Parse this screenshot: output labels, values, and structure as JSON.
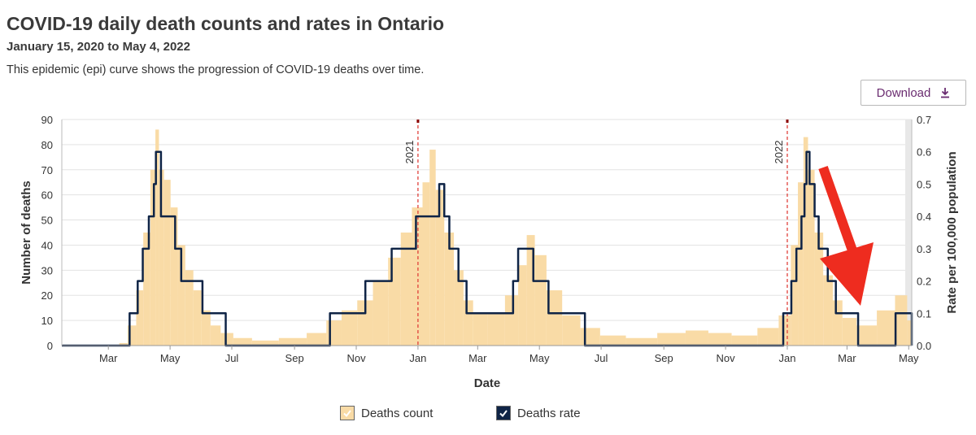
{
  "header": {
    "title": "COVID-19 daily death counts and rates in Ontario",
    "subtitle": "January 15, 2020 to May 4, 2022",
    "description": "This epidemic (epi) curve shows the progression of COVID-19 deaths over time.",
    "download_label": "Download",
    "download_icon": "download-icon"
  },
  "colors": {
    "count_fill": "#f9dba6",
    "rate_line": "#0f2446",
    "year_marker": "#e0413c",
    "arrow": "#ee2c1f"
  },
  "chart_data": {
    "type": "bar",
    "xlabel": "Date",
    "ylabel": "Number of deaths",
    "y2label": "Rate per 100,000 population",
    "ylim": [
      0,
      90
    ],
    "y2lim": [
      0,
      0.7
    ],
    "y_ticks": [
      "0",
      "10",
      "20",
      "30",
      "40",
      "50",
      "60",
      "70",
      "80",
      "90"
    ],
    "y2_ticks": [
      "0.0",
      "0.1",
      "0.2",
      "0.3",
      "0.4",
      "0.5",
      "0.6",
      "0.7"
    ],
    "x_range": [
      "2020-01-15",
      "2022-05-04"
    ],
    "x_ticks": [
      {
        "date": "2020-03-01",
        "label": "Mar"
      },
      {
        "date": "2020-05-01",
        "label": "May"
      },
      {
        "date": "2020-07-01",
        "label": "Jul"
      },
      {
        "date": "2020-09-01",
        "label": "Sep"
      },
      {
        "date": "2020-11-01",
        "label": "Nov"
      },
      {
        "date": "2021-01-01",
        "label": "Jan"
      },
      {
        "date": "2021-03-01",
        "label": "Mar"
      },
      {
        "date": "2021-05-01",
        "label": "May"
      },
      {
        "date": "2021-07-01",
        "label": "Jul"
      },
      {
        "date": "2021-09-01",
        "label": "Sep"
      },
      {
        "date": "2021-11-01",
        "label": "Nov"
      },
      {
        "date": "2022-01-01",
        "label": "Jan"
      },
      {
        "date": "2022-03-01",
        "label": "Mar"
      },
      {
        "date": "2022-05-01",
        "label": "May"
      }
    ],
    "year_markers": [
      {
        "date": "2021-01-01",
        "label": "2021"
      },
      {
        "date": "2022-01-01",
        "label": "2022"
      }
    ],
    "grid": true,
    "legend_position": "bottom-center",
    "series": [
      {
        "name": "Deaths count",
        "type": "bar",
        "axis": "left",
        "points": [
          [
            "2020-03-15",
            1
          ],
          [
            "2020-03-25",
            8
          ],
          [
            "2020-04-01",
            22
          ],
          [
            "2020-04-08",
            45
          ],
          [
            "2020-04-15",
            70
          ],
          [
            "2020-04-18",
            86
          ],
          [
            "2020-04-22",
            70
          ],
          [
            "2020-04-28",
            66
          ],
          [
            "2020-05-05",
            55
          ],
          [
            "2020-05-12",
            40
          ],
          [
            "2020-05-20",
            30
          ],
          [
            "2020-05-28",
            22
          ],
          [
            "2020-06-05",
            14
          ],
          [
            "2020-06-15",
            8
          ],
          [
            "2020-06-25",
            5
          ],
          [
            "2020-07-10",
            3
          ],
          [
            "2020-08-01",
            2
          ],
          [
            "2020-09-01",
            3
          ],
          [
            "2020-09-25",
            5
          ],
          [
            "2020-10-10",
            10
          ],
          [
            "2020-10-25",
            14
          ],
          [
            "2020-11-10",
            18
          ],
          [
            "2020-11-25",
            26
          ],
          [
            "2020-12-10",
            35
          ],
          [
            "2020-12-20",
            45
          ],
          [
            "2021-01-01",
            55
          ],
          [
            "2021-01-10",
            65
          ],
          [
            "2021-01-15",
            78
          ],
          [
            "2021-01-22",
            62
          ],
          [
            "2021-02-01",
            45
          ],
          [
            "2021-02-10",
            30
          ],
          [
            "2021-02-20",
            18
          ],
          [
            "2021-03-01",
            13
          ],
          [
            "2021-03-20",
            13
          ],
          [
            "2021-04-05",
            20
          ],
          [
            "2021-04-15",
            32
          ],
          [
            "2021-04-22",
            44
          ],
          [
            "2021-05-01",
            36
          ],
          [
            "2021-05-15",
            22
          ],
          [
            "2021-06-01",
            12
          ],
          [
            "2021-06-20",
            7
          ],
          [
            "2021-07-10",
            4
          ],
          [
            "2021-08-10",
            3
          ],
          [
            "2021-09-10",
            5
          ],
          [
            "2021-10-05",
            6
          ],
          [
            "2021-10-25",
            5
          ],
          [
            "2021-11-20",
            4
          ],
          [
            "2021-12-15",
            7
          ],
          [
            "2022-01-01",
            12
          ],
          [
            "2022-01-08",
            40
          ],
          [
            "2022-01-15",
            65
          ],
          [
            "2022-01-19",
            83
          ],
          [
            "2022-01-24",
            70
          ],
          [
            "2022-02-01",
            45
          ],
          [
            "2022-02-10",
            28
          ],
          [
            "2022-02-20",
            18
          ],
          [
            "2022-03-01",
            11
          ],
          [
            "2022-03-20",
            8
          ],
          [
            "2022-04-10",
            14
          ],
          [
            "2022-04-25",
            20
          ],
          [
            "2022-05-04",
            10
          ]
        ]
      },
      {
        "name": "Deaths rate",
        "type": "line",
        "axis": "right",
        "points": [
          [
            "2020-01-15",
            0
          ],
          [
            "2020-03-17",
            0
          ],
          [
            "2020-03-22",
            0.1
          ],
          [
            "2020-03-30",
            0.2
          ],
          [
            "2020-04-04",
            0.3
          ],
          [
            "2020-04-10",
            0.4
          ],
          [
            "2020-04-15",
            0.5
          ],
          [
            "2020-04-17",
            0.6
          ],
          [
            "2020-04-22",
            0.4
          ],
          [
            "2020-05-06",
            0.3
          ],
          [
            "2020-05-12",
            0.2
          ],
          [
            "2020-06-02",
            0.1
          ],
          [
            "2020-06-20",
            0.1
          ],
          [
            "2020-06-25",
            0
          ],
          [
            "2020-10-01",
            0
          ],
          [
            "2020-10-06",
            0.1
          ],
          [
            "2020-11-05",
            0.1
          ],
          [
            "2020-11-10",
            0.2
          ],
          [
            "2020-12-01",
            0.2
          ],
          [
            "2020-12-06",
            0.3
          ],
          [
            "2020-12-26",
            0.3
          ],
          [
            "2020-12-30",
            0.4
          ],
          [
            "2021-01-20",
            0.4
          ],
          [
            "2021-01-22",
            0.5
          ],
          [
            "2021-01-27",
            0.4
          ],
          [
            "2021-02-01",
            0.3
          ],
          [
            "2021-02-10",
            0.2
          ],
          [
            "2021-02-18",
            0.1
          ],
          [
            "2021-04-02",
            0.1
          ],
          [
            "2021-04-05",
            0.2
          ],
          [
            "2021-04-10",
            0.3
          ],
          [
            "2021-04-25",
            0.2
          ],
          [
            "2021-05-10",
            0.1
          ],
          [
            "2021-06-10",
            0.1
          ],
          [
            "2021-06-15",
            0
          ],
          [
            "2021-12-10",
            0
          ],
          [
            "2021-12-28",
            0.1
          ],
          [
            "2022-01-05",
            0.2
          ],
          [
            "2022-01-10",
            0.3
          ],
          [
            "2022-01-15",
            0.4
          ],
          [
            "2022-01-18",
            0.5
          ],
          [
            "2022-01-20",
            0.6
          ],
          [
            "2022-01-23",
            0.5
          ],
          [
            "2022-01-28",
            0.4
          ],
          [
            "2022-02-01",
            0.3
          ],
          [
            "2022-02-10",
            0.2
          ],
          [
            "2022-02-18",
            0.1
          ],
          [
            "2022-03-08",
            0.1
          ],
          [
            "2022-03-12",
            0
          ],
          [
            "2022-04-15",
            0
          ],
          [
            "2022-04-18",
            0.1
          ],
          [
            "2022-05-01",
            0.1
          ],
          [
            "2022-05-04",
            0
          ]
        ]
      }
    ]
  }
}
